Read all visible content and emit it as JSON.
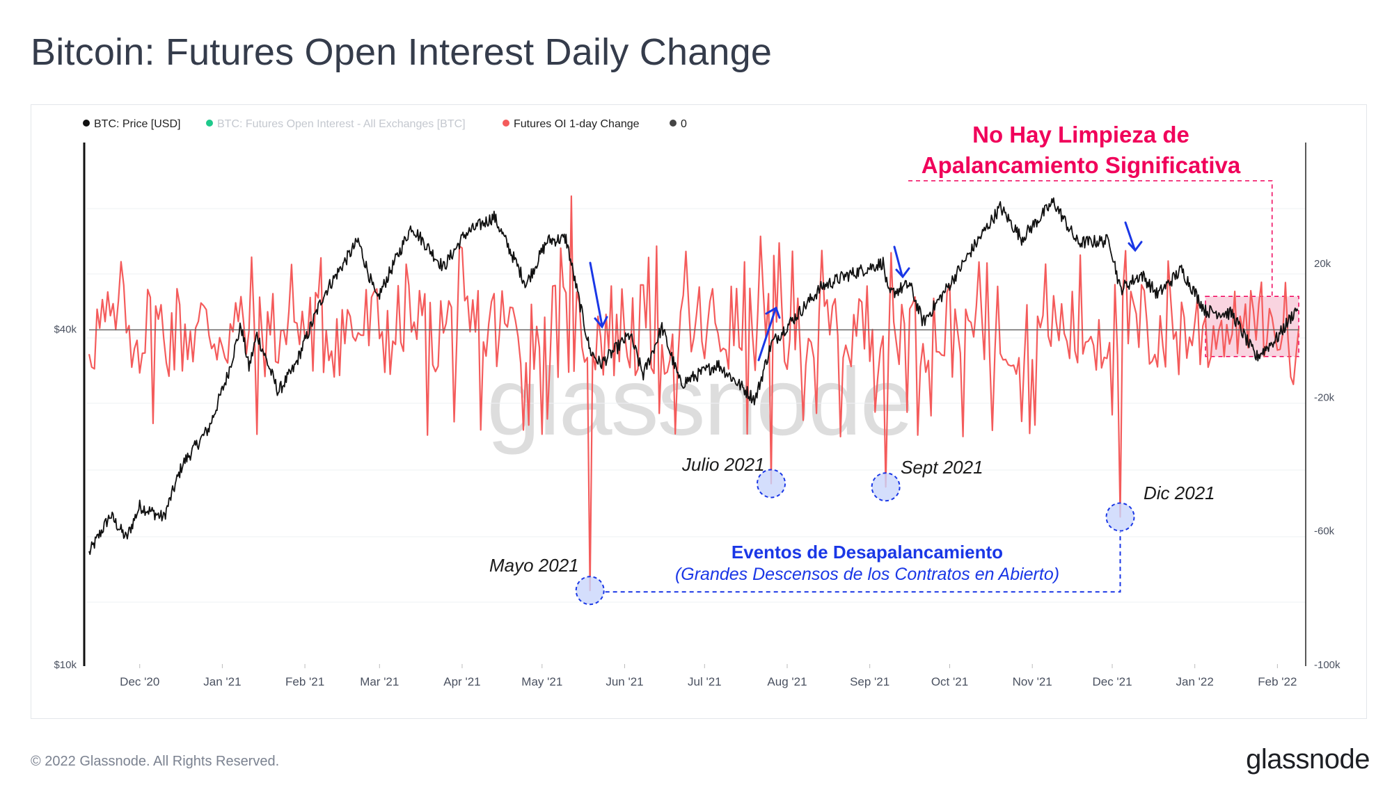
{
  "title": "Bitcoin: Futures Open Interest Daily Change",
  "footer": {
    "copyright": "© 2022 Glassnode. All Rights Reserved.",
    "logo": "glassnode"
  },
  "colors": {
    "price": "#000000",
    "oi": "#1ec98b",
    "oi_change": "#f45b5b",
    "zero": "#555555",
    "red_annotation": "#f0005a",
    "blue_annotation": "#1a37e6",
    "highlight": "#f7c6d6"
  },
  "legend": [
    {
      "label": "BTC: Price [USD]",
      "color": "#111111",
      "muted": false
    },
    {
      "label": "BTC: Futures Open Interest - All Exchanges [BTC]",
      "color": "#1ec98b",
      "muted": true
    },
    {
      "label": "Futures OI 1-day Change",
      "color": "#f45b5b",
      "muted": false
    },
    {
      "label": "0",
      "color": "#444444",
      "muted": false
    }
  ],
  "watermark": "glassnode",
  "annotations": {
    "no_cleanup_line1": "No Hay Limpieza de",
    "no_cleanup_line2": "Apalancamiento Significativa",
    "events_title": "Eventos de Desapalancamiento",
    "events_subtitle": "(Grandes Descensos de los Contratos en Abierto)",
    "events": [
      {
        "label": "Mayo 2021",
        "date": "2021-05-19",
        "value": -78000
      },
      {
        "label": "Julio 2021",
        "date": "2021-07-26",
        "value": -46000
      },
      {
        "label": "Sept 2021",
        "date": "2021-09-07",
        "value": -47000
      },
      {
        "label": "Dic 2021",
        "date": "2021-12-04",
        "value": -56000
      }
    ]
  },
  "chart_data": {
    "type": "line",
    "x_range": [
      "2020-11-12",
      "2022-02-09"
    ],
    "x_ticks": [
      "Dec '20",
      "Jan '21",
      "Feb '21",
      "Mar '21",
      "Apr '21",
      "May '21",
      "Jun '21",
      "Jul '21",
      "Aug '21",
      "Sep '21",
      "Oct '21",
      "Nov '21",
      "Dec '21",
      "Jan '22",
      "Feb '22"
    ],
    "y_left": {
      "scale": "log",
      "range": [
        10000,
        85000
      ],
      "ticks": [
        {
          "value": 40000,
          "label": "$40k"
        },
        {
          "value": 10000,
          "label": "$10k"
        }
      ]
    },
    "y_right": {
      "range": [
        -100000,
        55000
      ],
      "ticks": [
        {
          "value": 20000,
          "label": "20k"
        },
        {
          "value": -20000,
          "label": "-20k"
        },
        {
          "value": -60000,
          "label": "-60k"
        },
        {
          "value": -100000,
          "label": "-100k"
        }
      ]
    },
    "series": [
      {
        "name": "BTC: Price [USD]",
        "axis": "left",
        "points": [
          [
            "2020-11-12",
            15800
          ],
          [
            "2020-11-20",
            18500
          ],
          [
            "2020-11-26",
            16800
          ],
          [
            "2020-12-01",
            19200
          ],
          [
            "2020-12-10",
            18300
          ],
          [
            "2020-12-17",
            22800
          ],
          [
            "2020-12-27",
            26500
          ],
          [
            "2021-01-03",
            33000
          ],
          [
            "2021-01-08",
            40500
          ],
          [
            "2021-01-11",
            34000
          ],
          [
            "2021-01-14",
            39000
          ],
          [
            "2021-01-22",
            30800
          ],
          [
            "2021-01-28",
            34000
          ],
          [
            "2021-02-08",
            46000
          ],
          [
            "2021-02-21",
            57500
          ],
          [
            "2021-02-28",
            45000
          ],
          [
            "2021-03-13",
            61000
          ],
          [
            "2021-03-25",
            51500
          ],
          [
            "2021-04-02",
            59000
          ],
          [
            "2021-04-13",
            63500
          ],
          [
            "2021-04-25",
            48000
          ],
          [
            "2021-05-03",
            57500
          ],
          [
            "2021-05-10",
            58000
          ],
          [
            "2021-05-13",
            49500
          ],
          [
            "2021-05-19",
            36500
          ],
          [
            "2021-05-23",
            34500
          ],
          [
            "2021-06-03",
            39000
          ],
          [
            "2021-06-08",
            33000
          ],
          [
            "2021-06-15",
            40200
          ],
          [
            "2021-06-22",
            31800
          ],
          [
            "2021-07-06",
            34500
          ],
          [
            "2021-07-20",
            29800
          ],
          [
            "2021-07-26",
            37500
          ],
          [
            "2021-08-14",
            47500
          ],
          [
            "2021-08-22",
            49500
          ],
          [
            "2021-09-06",
            52500
          ],
          [
            "2021-09-08",
            46000
          ],
          [
            "2021-09-16",
            48000
          ],
          [
            "2021-09-21",
            41000
          ],
          [
            "2021-10-01",
            48000
          ],
          [
            "2021-10-10",
            56000
          ],
          [
            "2021-10-20",
            66000
          ],
          [
            "2021-10-28",
            58000
          ],
          [
            "2021-11-09",
            67500
          ],
          [
            "2021-11-18",
            57000
          ],
          [
            "2021-11-30",
            57500
          ],
          [
            "2021-12-04",
            47000
          ],
          [
            "2021-12-12",
            50000
          ],
          [
            "2021-12-18",
            46000
          ],
          [
            "2021-12-27",
            51000
          ],
          [
            "2022-01-05",
            43000
          ],
          [
            "2022-01-15",
            42500
          ],
          [
            "2022-01-24",
            35500
          ],
          [
            "2022-02-01",
            38500
          ],
          [
            "2022-02-09",
            44000
          ]
        ]
      },
      {
        "name": "Futures OI 1-day Change",
        "axis": "right",
        "spikes": [
          [
            "2021-04-24",
            -30000
          ],
          [
            "2021-05-12",
            40000
          ],
          [
            "2021-05-19",
            -78000
          ],
          [
            "2021-06-14",
            -25000
          ],
          [
            "2021-07-22",
            28000
          ],
          [
            "2021-07-26",
            -46000
          ],
          [
            "2021-07-29",
            26000
          ],
          [
            "2021-08-12",
            -25000
          ],
          [
            "2021-09-07",
            -47000
          ],
          [
            "2021-10-15",
            20000
          ],
          [
            "2021-12-04",
            -56000
          ]
        ]
      },
      {
        "name": "0",
        "axis": "right",
        "value": 0
      }
    ]
  }
}
